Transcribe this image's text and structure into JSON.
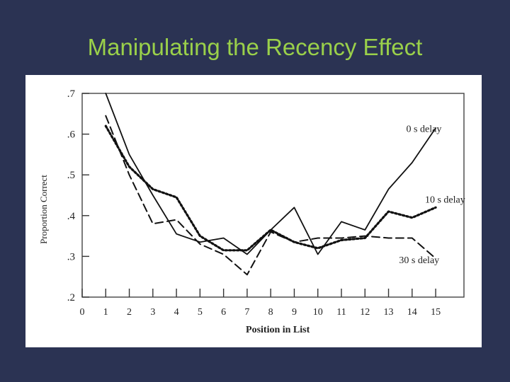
{
  "slide": {
    "title": "Manipulating the Recency Effect"
  },
  "chart_data": {
    "type": "line",
    "title": "",
    "xlabel": "Position in List",
    "ylabel": "Proportion Correct",
    "x": [
      1,
      2,
      3,
      4,
      5,
      6,
      7,
      8,
      9,
      10,
      11,
      12,
      13,
      14,
      15
    ],
    "x_ticks": [
      "0",
      "1",
      "2",
      "3",
      "4",
      "5",
      "6",
      "7",
      "8",
      "9",
      "10",
      "11",
      "12",
      "13",
      "14",
      "15"
    ],
    "y_ticks": [
      ".7",
      ".6",
      ".5",
      ".4",
      ".3",
      ".2"
    ],
    "xlim": [
      0,
      16.2
    ],
    "ylim": [
      0.2,
      0.7
    ],
    "grid": false,
    "series": [
      {
        "name": "0 s delay",
        "style": "solid",
        "values": [
          0.7,
          0.55,
          0.45,
          0.355,
          0.335,
          0.345,
          0.305,
          0.365,
          0.42,
          0.305,
          0.385,
          0.365,
          0.465,
          0.53,
          0.615
        ]
      },
      {
        "name": "10 s delay",
        "style": "dotted",
        "values": [
          0.62,
          0.52,
          0.465,
          0.445,
          0.35,
          0.315,
          0.315,
          0.365,
          0.335,
          0.32,
          0.34,
          0.345,
          0.41,
          0.395,
          0.42
        ]
      },
      {
        "name": "30 s delay",
        "style": "dashed",
        "values": [
          0.645,
          0.5,
          0.38,
          0.39,
          0.33,
          0.305,
          0.255,
          0.36,
          0.335,
          0.345,
          0.345,
          0.35,
          0.345,
          0.345,
          0.295
        ]
      }
    ]
  }
}
